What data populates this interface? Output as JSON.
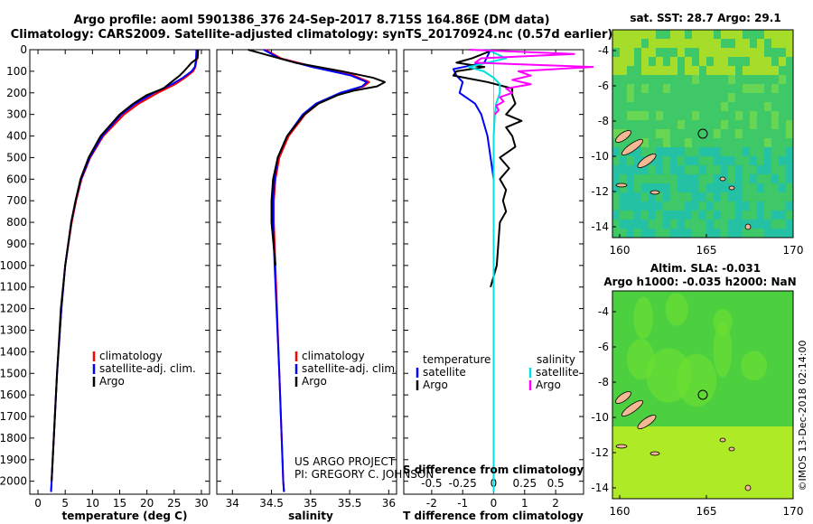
{
  "title": {
    "line1": "Argo profile: aoml 5901386_376 24-Sep-2017 8.715S 164.86E (DM data)",
    "line2": "Climatology: CARS2009. Satellite-adjusted climatology: synTS_20170924.nc (0.57d earlier)"
  },
  "depth_axis": {
    "ylim": [
      2060,
      0
    ],
    "ticks": [
      0,
      100,
      200,
      300,
      400,
      500,
      600,
      700,
      800,
      900,
      1000,
      1100,
      1200,
      1300,
      1400,
      1500,
      1600,
      1700,
      1800,
      1900,
      2000
    ]
  },
  "colors": {
    "climatology": "#ff0000",
    "satellite": "#0000ff",
    "argo": "#000000",
    "t_satellite": "#0000ff",
    "s_satellite": "#00e0e0",
    "s_argo": "#ff00ff"
  },
  "chart_data": [
    {
      "type": "line",
      "id": "temperature",
      "xlabel": "temperature (deg C)",
      "xlim": [
        -1.5,
        31.5
      ],
      "xticks": [
        0,
        5,
        10,
        15,
        20,
        25,
        30
      ],
      "legend": {
        "placement": "lower-left",
        "items": [
          "climatology",
          "satellite-adj. clim.",
          "Argo"
        ]
      },
      "series": [
        {
          "name": "climatology",
          "color": "climatology",
          "depth": [
            0,
            50,
            80,
            100,
            130,
            160,
            200,
            250,
            300,
            400,
            500,
            600,
            700,
            800,
            1000,
            1200,
            1500,
            1800,
            2000,
            2050
          ],
          "values": [
            29.2,
            29.1,
            28.9,
            28.5,
            27.0,
            25.2,
            22.0,
            18.5,
            15.8,
            12.0,
            9.6,
            8.0,
            7.0,
            6.2,
            5.0,
            4.3,
            3.5,
            2.9,
            2.5,
            2.4
          ]
        },
        {
          "name": "satellite-adj. clim.",
          "color": "satellite",
          "depth": [
            0,
            50,
            80,
            100,
            130,
            160,
            200,
            250,
            300,
            400,
            500,
            600,
            700,
            800,
            1000,
            1200,
            1500,
            1800,
            2000,
            2050
          ],
          "values": [
            29.1,
            29.0,
            28.8,
            28.2,
            26.6,
            24.6,
            21.3,
            17.9,
            15.3,
            11.8,
            9.5,
            7.9,
            6.9,
            6.1,
            5.0,
            4.3,
            3.5,
            2.9,
            2.5,
            2.4
          ]
        },
        {
          "name": "Argo",
          "color": "argo",
          "depth": [
            0,
            40,
            60,
            80,
            100,
            120,
            150,
            180,
            210,
            250,
            300,
            400,
            500,
            600,
            700,
            800,
            1000,
            1200,
            1500,
            1800,
            2000
          ],
          "values": [
            29.4,
            29.3,
            28.2,
            27.5,
            26.8,
            26.0,
            24.5,
            23.0,
            20.0,
            17.5,
            15.0,
            11.5,
            9.3,
            7.8,
            6.9,
            6.1,
            5.0,
            4.2,
            3.5,
            2.9,
            2.5
          ]
        }
      ]
    },
    {
      "type": "line",
      "id": "salinity",
      "xlabel": "salinity",
      "xlim": [
        33.8,
        36.1
      ],
      "xticks": [
        34,
        34.5,
        35,
        35.5,
        36
      ],
      "xtick_labels": [
        "34",
        "34.5",
        "35",
        "35.5",
        "36"
      ],
      "legend": {
        "placement": "lower-left",
        "items": [
          "climatology",
          "satellite-adj. clim.",
          "Argo"
        ]
      },
      "series": [
        {
          "name": "climatology",
          "color": "climatology",
          "depth": [
            0,
            40,
            80,
            120,
            150,
            170,
            200,
            250,
            300,
            400,
            500,
            600,
            700,
            800,
            1000,
            1500,
            2000,
            2050
          ],
          "values": [
            34.42,
            34.62,
            35.05,
            35.55,
            35.75,
            35.68,
            35.4,
            35.1,
            34.93,
            34.72,
            34.6,
            34.55,
            34.53,
            34.53,
            34.55,
            34.6,
            34.65,
            34.66
          ]
        },
        {
          "name": "satellite-adj. clim.",
          "color": "satellite",
          "depth": [
            0,
            40,
            80,
            120,
            150,
            170,
            200,
            250,
            300,
            400,
            500,
            600,
            700,
            800,
            1000,
            1500,
            2000,
            2050
          ],
          "values": [
            34.4,
            34.6,
            35.02,
            35.52,
            35.72,
            35.66,
            35.38,
            35.07,
            34.9,
            34.7,
            34.58,
            34.54,
            34.52,
            34.52,
            34.54,
            34.6,
            34.65,
            34.66
          ]
        },
        {
          "name": "Argo",
          "color": "argo",
          "depth": [
            0,
            20,
            40,
            60,
            80,
            100,
            130,
            150,
            170,
            190,
            210,
            250,
            300,
            400,
            500,
            600,
            700,
            800,
            1000
          ],
          "values": [
            34.2,
            34.4,
            34.6,
            34.8,
            35.1,
            35.4,
            35.8,
            35.95,
            35.85,
            35.55,
            35.35,
            35.1,
            34.92,
            34.7,
            34.58,
            34.52,
            34.5,
            34.5,
            34.55
          ]
        }
      ]
    },
    {
      "type": "line",
      "id": "differences",
      "xlabel": "T difference from climatology",
      "xlabel_top": "S difference from climatology",
      "xlim": [
        -2.9,
        2.9
      ],
      "xticks": [
        -2,
        -1,
        0,
        1,
        2
      ],
      "xticks_s": [
        "-0.5",
        "-0.25",
        "0",
        "0.25",
        "0.5"
      ],
      "legend": {
        "placement": "lower-center",
        "temperature_header": "temperature",
        "salinity_header": "salinity",
        "items_t": [
          "satellite",
          "Argo"
        ],
        "items_s": [
          "satellite",
          "Argo"
        ]
      },
      "series": [
        {
          "name": "satellite",
          "group": "temperature",
          "color": "t_satellite",
          "depth": [
            0,
            60,
            90,
            120,
            150,
            200,
            250,
            300,
            400,
            500,
            600,
            700,
            800,
            1000,
            1500,
            2050
          ],
          "values": [
            -0.1,
            -0.3,
            -1.3,
            -1.2,
            -1.0,
            -1.1,
            -0.6,
            -0.4,
            -0.2,
            -0.1,
            0,
            0,
            0,
            0,
            0,
            0
          ]
        },
        {
          "name": "Argo",
          "group": "temperature",
          "color": "argo",
          "depth": [
            0,
            40,
            60,
            80,
            100,
            120,
            150,
            180,
            210,
            250,
            300,
            330,
            360,
            400,
            450,
            500,
            550,
            600,
            650,
            700,
            750,
            800,
            900,
            1000,
            1050,
            1100
          ],
          "values": [
            0,
            -0.7,
            -1.2,
            -0.3,
            -1.2,
            -1.3,
            -0.2,
            0.6,
            0.6,
            0.7,
            0.4,
            0.9,
            0.4,
            0.6,
            0.7,
            0.2,
            0.5,
            0.2,
            0.4,
            0.3,
            0.4,
            0.2,
            0.15,
            0.1,
            0,
            -0.1
          ]
        },
        {
          "name": "satellite",
          "group": "salinity",
          "color": "s_satellite",
          "depth": [
            0,
            40,
            80,
            100,
            130,
            160,
            200,
            250,
            300,
            400,
            600,
            800,
            1000,
            1500,
            2050
          ],
          "values": [
            -0.05,
            0.1,
            -0.2,
            -0.08,
            0.0,
            0.05,
            0.05,
            0.02,
            0.01,
            0.0,
            0,
            0,
            0,
            0,
            0
          ]
        },
        {
          "name": "Argo",
          "group": "salinity",
          "color": "s_argo",
          "depth": [
            0,
            20,
            40,
            60,
            80,
            100,
            120,
            140,
            160,
            180,
            200,
            220,
            240,
            260,
            280,
            300
          ],
          "values": [
            -0.2,
            0.65,
            -0.1,
            -0.15,
            0.8,
            0.2,
            0.3,
            0.15,
            0.3,
            0.1,
            0.15,
            0.05,
            0.08,
            0.02,
            0.04,
            0.01
          ]
        }
      ]
    }
  ],
  "maps": [
    {
      "id": "sst",
      "title": "sat. SST: 28.7 Argo: 29.1",
      "xticks": [
        "160",
        "165",
        "170"
      ],
      "yticks": [
        "-4",
        "-6",
        "-8",
        "-10",
        "-12",
        "-14"
      ],
      "colors": {
        "land": "#f4b894",
        "base": "#3ec868",
        "warm": "#b8e020",
        "cool": "#20c0b0"
      }
    },
    {
      "id": "sla",
      "title": "Altim. SLA: -0.031",
      "subtitle": "Argo h1000: -0.035 h2000: NaN",
      "xticks": [
        "160",
        "165",
        "170"
      ],
      "yticks": [
        "-4",
        "-6",
        "-8",
        "-10",
        "-12",
        "-14"
      ],
      "colors": {
        "land": "#f4b894",
        "base": "#4cd040",
        "high": "#c8f020"
      }
    }
  ],
  "credits": {
    "project": "US ARGO PROJECT",
    "pi": "PI: GREGORY C. JOHNSON",
    "stamp": "©IMOS 13-Dec-2018 02:14:00"
  }
}
